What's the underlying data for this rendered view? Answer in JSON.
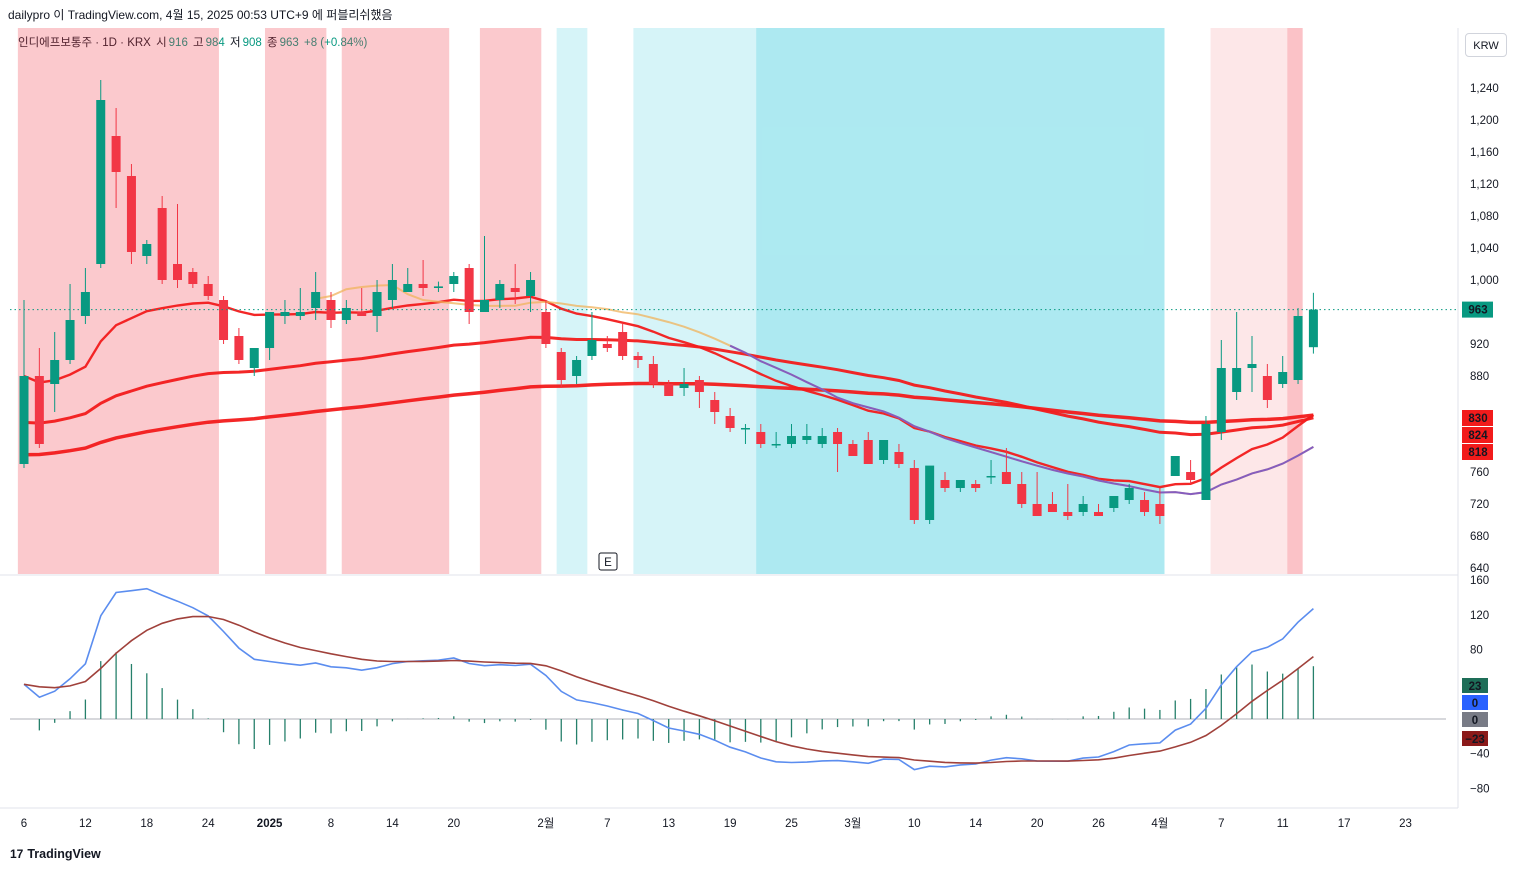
{
  "header": {
    "caption": "dailypro 이 TradingView.com, 4월 15, 2025 00:53 UTC+9 에 퍼블리쉬했음"
  },
  "legend": {
    "name": "인디에프보통주 · 1D · KRX",
    "open_label": "시",
    "open": "916",
    "high_label": "고",
    "high": "984",
    "low_label": "저",
    "low": "908",
    "close_label": "종",
    "close": "963",
    "change": "+8 (+0.84%)"
  },
  "currency_button": "KRW",
  "footer": {
    "logo_mark": "17",
    "logo_text": "TradingView"
  },
  "badges": {
    "price_last": "963",
    "ma1": "830",
    "ma2": "824",
    "ma3": "818",
    "macd_hist": "23",
    "macd_a": "0",
    "macd_b": "0",
    "macd_signal": "−23"
  },
  "colors": {
    "up": "#089981",
    "down": "#f23645",
    "red_zone": "#f23645",
    "blue_zone": "#00bcd4",
    "ma_red": "#f21b1b",
    "ma_orange": "#f0b35b",
    "ma_purple": "#7e57c2",
    "macd_line": "#5b8def",
    "signal_line": "#a0413b"
  },
  "chart_data": [
    {
      "type": "candlestick",
      "title": "인디에프보통주 · 1D · KRX",
      "currency": "KRW",
      "y_ticks": [
        "1,240",
        "1,200",
        "1,160",
        "1,120",
        "1,080",
        "1,040",
        "1,000",
        "920",
        "880",
        "760",
        "720",
        "680",
        "640"
      ],
      "ylim": [
        635,
        1290
      ],
      "x_ticks": [
        "6",
        "12",
        "18",
        "24",
        "2025",
        "8",
        "14",
        "20",
        "2월",
        "7",
        "13",
        "19",
        "25",
        "3월",
        "10",
        "14",
        "20",
        "26",
        "4월",
        "7",
        "11",
        "17",
        "23"
      ],
      "event_marker": "E",
      "candles": [
        {
          "o": 770,
          "h": 975,
          "l": 765,
          "c": 880
        },
        {
          "o": 880,
          "h": 915,
          "l": 790,
          "c": 795
        },
        {
          "o": 870,
          "h": 935,
          "l": 835,
          "c": 900
        },
        {
          "o": 900,
          "h": 995,
          "l": 895,
          "c": 950
        },
        {
          "o": 955,
          "h": 1015,
          "l": 945,
          "c": 985
        },
        {
          "o": 1020,
          "h": 1250,
          "l": 1015,
          "c": 1225
        },
        {
          "o": 1180,
          "h": 1215,
          "l": 1090,
          "c": 1135
        },
        {
          "o": 1130,
          "h": 1145,
          "l": 1020,
          "c": 1035
        },
        {
          "o": 1030,
          "h": 1050,
          "l": 1020,
          "c": 1045
        },
        {
          "o": 1090,
          "h": 1105,
          "l": 995,
          "c": 1000
        },
        {
          "o": 1020,
          "h": 1095,
          "l": 990,
          "c": 1000
        },
        {
          "o": 1010,
          "h": 1015,
          "l": 990,
          "c": 995
        },
        {
          "o": 995,
          "h": 1005,
          "l": 975,
          "c": 980
        },
        {
          "o": 975,
          "h": 980,
          "l": 920,
          "c": 925
        },
        {
          "o": 930,
          "h": 940,
          "l": 895,
          "c": 900
        },
        {
          "o": 890,
          "h": 915,
          "l": 880,
          "c": 915
        },
        {
          "o": 915,
          "h": 960,
          "l": 900,
          "c": 960
        },
        {
          "o": 955,
          "h": 975,
          "l": 945,
          "c": 960
        },
        {
          "o": 955,
          "h": 990,
          "l": 950,
          "c": 960
        },
        {
          "o": 965,
          "h": 1010,
          "l": 950,
          "c": 985
        },
        {
          "o": 975,
          "h": 985,
          "l": 940,
          "c": 950
        },
        {
          "o": 950,
          "h": 975,
          "l": 945,
          "c": 965
        },
        {
          "o": 960,
          "h": 990,
          "l": 955,
          "c": 955
        },
        {
          "o": 955,
          "h": 1000,
          "l": 935,
          "c": 985
        },
        {
          "o": 975,
          "h": 1020,
          "l": 965,
          "c": 1000
        },
        {
          "o": 985,
          "h": 1015,
          "l": 985,
          "c": 995
        },
        {
          "o": 995,
          "h": 1025,
          "l": 980,
          "c": 990
        },
        {
          "o": 990,
          "h": 998,
          "l": 985,
          "c": 992
        },
        {
          "o": 995,
          "h": 1010,
          "l": 985,
          "c": 1005
        },
        {
          "o": 1015,
          "h": 1020,
          "l": 945,
          "c": 960
        },
        {
          "o": 960,
          "h": 1055,
          "l": 960,
          "c": 975
        },
        {
          "o": 975,
          "h": 1000,
          "l": 965,
          "c": 995
        },
        {
          "o": 990,
          "h": 1020,
          "l": 970,
          "c": 985
        },
        {
          "o": 980,
          "h": 1010,
          "l": 960,
          "c": 1000
        },
        {
          "o": 960,
          "h": 975,
          "l": 915,
          "c": 920
        },
        {
          "o": 910,
          "h": 915,
          "l": 865,
          "c": 875
        },
        {
          "o": 880,
          "h": 905,
          "l": 870,
          "c": 900
        },
        {
          "o": 905,
          "h": 960,
          "l": 900,
          "c": 925
        },
        {
          "o": 920,
          "h": 930,
          "l": 910,
          "c": 915
        },
        {
          "o": 935,
          "h": 945,
          "l": 900,
          "c": 905
        },
        {
          "o": 905,
          "h": 910,
          "l": 890,
          "c": 900
        },
        {
          "o": 895,
          "h": 905,
          "l": 865,
          "c": 870
        },
        {
          "o": 870,
          "h": 875,
          "l": 855,
          "c": 855
        },
        {
          "o": 865,
          "h": 890,
          "l": 855,
          "c": 870
        },
        {
          "o": 875,
          "h": 880,
          "l": 840,
          "c": 860
        },
        {
          "o": 850,
          "h": 860,
          "l": 820,
          "c": 835
        },
        {
          "o": 830,
          "h": 840,
          "l": 810,
          "c": 815
        },
        {
          "o": 815,
          "h": 820,
          "l": 795,
          "c": 815
        },
        {
          "o": 810,
          "h": 820,
          "l": 790,
          "c": 795
        },
        {
          "o": 795,
          "h": 810,
          "l": 790,
          "c": 795
        },
        {
          "o": 795,
          "h": 820,
          "l": 790,
          "c": 805
        },
        {
          "o": 800,
          "h": 820,
          "l": 795,
          "c": 805
        },
        {
          "o": 795,
          "h": 815,
          "l": 790,
          "c": 805
        },
        {
          "o": 810,
          "h": 815,
          "l": 760,
          "c": 795
        },
        {
          "o": 795,
          "h": 800,
          "l": 780,
          "c": 780
        },
        {
          "o": 800,
          "h": 810,
          "l": 770,
          "c": 770
        },
        {
          "o": 775,
          "h": 800,
          "l": 770,
          "c": 800
        },
        {
          "o": 785,
          "h": 795,
          "l": 765,
          "c": 770
        },
        {
          "o": 765,
          "h": 775,
          "l": 695,
          "c": 700
        },
        {
          "o": 700,
          "h": 765,
          "l": 695,
          "c": 768
        },
        {
          "o": 750,
          "h": 760,
          "l": 735,
          "c": 740
        },
        {
          "o": 740,
          "h": 750,
          "l": 735,
          "c": 750
        },
        {
          "o": 745,
          "h": 750,
          "l": 735,
          "c": 740
        },
        {
          "o": 755,
          "h": 775,
          "l": 745,
          "c": 755
        },
        {
          "o": 760,
          "h": 790,
          "l": 745,
          "c": 745
        },
        {
          "o": 745,
          "h": 760,
          "l": 715,
          "c": 720
        },
        {
          "o": 720,
          "h": 760,
          "l": 705,
          "c": 705
        },
        {
          "o": 720,
          "h": 735,
          "l": 710,
          "c": 710
        },
        {
          "o": 710,
          "h": 745,
          "l": 700,
          "c": 705
        },
        {
          "o": 710,
          "h": 730,
          "l": 705,
          "c": 720
        },
        {
          "o": 710,
          "h": 720,
          "l": 705,
          "c": 705
        },
        {
          "o": 715,
          "h": 730,
          "l": 710,
          "c": 730
        },
        {
          "o": 725,
          "h": 745,
          "l": 720,
          "c": 740
        },
        {
          "o": 725,
          "h": 735,
          "l": 705,
          "c": 710
        },
        {
          "o": 720,
          "h": 740,
          "l": 695,
          "c": 705
        },
        {
          "o": 755,
          "h": 780,
          "l": 755,
          "c": 780
        },
        {
          "o": 760,
          "h": 775,
          "l": 745,
          "c": 750
        },
        {
          "o": 725,
          "h": 830,
          "l": 725,
          "c": 820
        },
        {
          "o": 810,
          "h": 925,
          "l": 800,
          "c": 890
        },
        {
          "o": 860,
          "h": 960,
          "l": 850,
          "c": 890
        },
        {
          "o": 890,
          "h": 930,
          "l": 860,
          "c": 895
        },
        {
          "o": 880,
          "h": 895,
          "l": 840,
          "c": 850
        },
        {
          "o": 870,
          "h": 905,
          "l": 865,
          "c": 885
        },
        {
          "o": 875,
          "h": 965,
          "l": 870,
          "c": 955
        },
        {
          "o": 916,
          "h": 984,
          "l": 908,
          "c": 963
        }
      ],
      "series": [
        {
          "name": "",
          "color": "#f21b1b"
        },
        {
          "name": "",
          "color": "#f21b1b"
        },
        {
          "name": "",
          "color": "#f21b1b"
        },
        {
          "name": "",
          "color": "#f0b35b"
        },
        {
          "name": "",
          "color": "#7e57c2"
        }
      ]
    },
    {
      "type": "line",
      "y_ticks": [
        "160",
        "120",
        "80",
        "−40",
        "−80"
      ],
      "ylim": [
        -100,
        165
      ],
      "series": [
        {
          "name": "",
          "color": "#5b8def"
        },
        {
          "name": "",
          "color": "#a0413b"
        }
      ],
      "histogram_color": "#26806b"
    }
  ]
}
